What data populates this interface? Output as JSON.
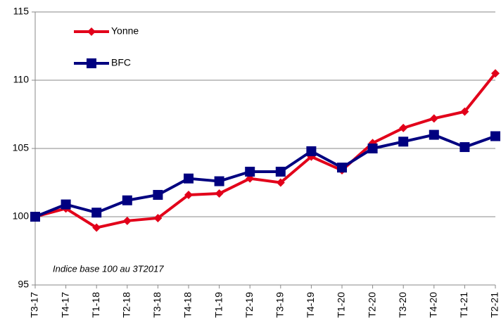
{
  "chart_data": {
    "type": "line",
    "annotation": "Indice base 100 au 3T2017",
    "categories": [
      "T3-17",
      "T4-17",
      "T1-18",
      "T2-18",
      "T3-18",
      "T4-18",
      "T1-19",
      "T2-19",
      "T3-19",
      "T4-19",
      "T1-20",
      "T2-20",
      "T3-20",
      "T4-20",
      "T1-21",
      "T2-21"
    ],
    "series": [
      {
        "name": "Yonne",
        "color": "#e2001a",
        "marker": "diamond",
        "values": [
          100,
          100.6,
          99.2,
          99.7,
          99.9,
          101.6,
          101.7,
          102.8,
          102.5,
          104.4,
          103.4,
          105.4,
          106.5,
          107.2,
          107.7,
          110.5
        ]
      },
      {
        "name": "BFC",
        "color": "#000080",
        "marker": "square",
        "values": [
          100,
          100.9,
          100.3,
          101.2,
          101.6,
          102.8,
          102.6,
          103.3,
          103.3,
          104.8,
          103.6,
          105.0,
          105.5,
          106.0,
          105.1,
          105.9
        ]
      }
    ],
    "ylim": [
      95,
      115
    ],
    "yticks": [
      95,
      100,
      105,
      110,
      115
    ],
    "grid": true,
    "legend": "top-left"
  }
}
